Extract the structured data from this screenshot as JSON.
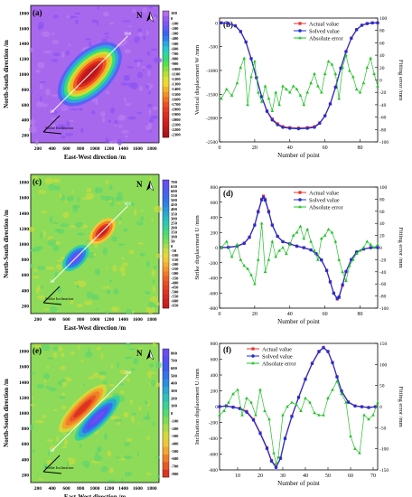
{
  "colors": {
    "actual": "#e8322a",
    "solved": "#1f2fd6",
    "error": "#22c22a",
    "map_field_green": "#8edb5a"
  },
  "map_scale": {
    "units": "mm",
    "a": {
      "ticks": [
        "100",
        "0",
        "-100",
        "-200",
        "-300",
        "-400",
        "-500",
        "-600",
        "-700",
        "-800",
        "-900",
        "-1000",
        "-1100",
        "-1200",
        "-1300",
        "-1400",
        "-1500",
        "-1600",
        "-1700",
        "-1800",
        "-1900",
        "-2000",
        "-2100",
        "-2200",
        "-2300"
      ],
      "colors": [
        "#b36cf0",
        "#9a5cf3",
        "#7f56f5",
        "#5e5cf5",
        "#3b63f2",
        "#2f80ec",
        "#2aa6e2",
        "#27c8cf",
        "#2ad8a6",
        "#35de77",
        "#56e04e",
        "#86e23b",
        "#b6e235",
        "#dde22f",
        "#f5d52a",
        "#f6b428",
        "#f59226",
        "#f27024",
        "#ee5022",
        "#e83a21",
        "#e02d20",
        "#d6231f",
        "#c91d1e",
        "#bb171c",
        "#ad121a"
      ]
    },
    "c": {
      "ticks": [
        "700",
        "650",
        "600",
        "550",
        "500",
        "450",
        "400",
        "350",
        "300",
        "250",
        "200",
        "150",
        "100",
        "50",
        "0",
        "-50",
        "-100",
        "-150",
        "-200",
        "-250",
        "-300",
        "-350",
        "-400",
        "-450",
        "-500",
        "-550",
        "-600",
        "-650"
      ],
      "colors": [
        "#6a4ef2",
        "#5a55f4",
        "#4a5ef4",
        "#3d68f1",
        "#3474ec",
        "#2d84e6",
        "#2a97dc",
        "#28aacf",
        "#28bcc0",
        "#2ccaab",
        "#36d392",
        "#48d97a",
        "#5fdc65",
        "#7edd55",
        "#a6dd48",
        "#c9dc3e",
        "#e2d838",
        "#f2c733",
        "#f5ae2e",
        "#f4952a",
        "#f27b27",
        "#ee6325",
        "#ea4f23",
        "#e54022",
        "#df3321",
        "#d82a20",
        "#cf221f",
        "#c51c1d"
      ]
    },
    "e": {
      "ticks": [
        "800",
        "700",
        "600",
        "500",
        "400",
        "300",
        "200",
        "100",
        "0",
        "-100",
        "-200",
        "-300",
        "-400",
        "-500",
        "-600",
        "-700",
        "-800"
      ],
      "colors": [
        "#6a4ef2",
        "#534ff4",
        "#3f5bf2",
        "#3471ec",
        "#2d8ce2",
        "#2aa8d2",
        "#2cc1b9",
        "#39d297",
        "#54da72",
        "#7edd55",
        "#aadc46",
        "#d2da3b",
        "#ecc835",
        "#f4a62d",
        "#f07f27",
        "#e95724",
        "#df3321"
      ]
    }
  },
  "panels": {
    "a": {
      "label": "(a)",
      "xlabel": "East-West direction /m",
      "ylabel": "North-South direction /m",
      "north": "N",
      "grid_label": "Strike Inclination",
      "line_start": "1#",
      "line_end": "90#"
    },
    "c": {
      "label": "(c)",
      "xlabel": "East-West direction /m",
      "ylabel": "North-South direction /m",
      "north": "N",
      "grid_label": "Strike Inclination",
      "line_start": "1#",
      "line_end": "90#"
    },
    "e": {
      "label": "(e)",
      "xlabel": "East-West direction /m",
      "ylabel": "North-South direction /m",
      "north": "N",
      "grid_label": "Strike Inclination",
      "line_start": "1#",
      "line_end": "70#"
    }
  },
  "chart_data": [
    {
      "id": "b",
      "type": "line",
      "label": "(b)",
      "xlabel": "Number of point",
      "ylabel": "Vertical displacement W /mm",
      "y2label": "Fitting error /mm",
      "xlim": [
        0,
        90
      ],
      "ylim": [
        -2500,
        100
      ],
      "y2lim": [
        -100,
        100
      ],
      "xticks": [
        0,
        20,
        40,
        60,
        80
      ],
      "yticks": [
        -2500,
        -2000,
        -1500,
        -1000,
        -500,
        0
      ],
      "y2ticks": [
        -100,
        -80,
        -60,
        -40,
        -20,
        0,
        20,
        40,
        60,
        80,
        100
      ],
      "legend": [
        "Actual value",
        "Solved value",
        "Absolute error"
      ],
      "legend_position": "top-right",
      "series": [
        {
          "name": "Actual value",
          "axis": "left",
          "x": [
            1,
            5,
            9,
            12,
            15,
            18,
            21,
            24,
            27,
            30,
            33,
            36,
            40,
            45,
            50,
            54,
            57,
            60,
            63,
            66,
            69,
            72,
            75,
            78,
            81,
            84,
            87,
            90
          ],
          "y": [
            0,
            -10,
            -60,
            -180,
            -400,
            -750,
            -1150,
            -1550,
            -1850,
            -2020,
            -2120,
            -2180,
            -2200,
            -2210,
            -2200,
            -2180,
            -2100,
            -1950,
            -1700,
            -1350,
            -950,
            -600,
            -320,
            -140,
            -50,
            -15,
            0,
            0
          ]
        },
        {
          "name": "Solved value",
          "axis": "left",
          "x": [
            1,
            5,
            9,
            12,
            15,
            18,
            21,
            24,
            27,
            30,
            33,
            36,
            40,
            45,
            50,
            54,
            57,
            60,
            63,
            66,
            69,
            72,
            75,
            78,
            81,
            84,
            87,
            90
          ],
          "y": [
            0,
            -12,
            -65,
            -185,
            -405,
            -755,
            -1155,
            -1555,
            -1860,
            -2040,
            -2140,
            -2195,
            -2215,
            -2225,
            -2215,
            -2195,
            -2110,
            -1955,
            -1705,
            -1355,
            -955,
            -605,
            -325,
            -145,
            -52,
            -16,
            -1,
            0
          ]
        },
        {
          "name": "Absolute error",
          "axis": "right",
          "x": [
            1,
            4,
            7,
            10,
            12,
            14,
            16,
            18,
            20,
            22,
            24,
            26,
            28,
            30,
            32,
            34,
            36,
            38,
            40,
            42,
            44,
            46,
            48,
            50,
            52,
            54,
            56,
            58,
            60,
            62,
            64,
            66,
            68,
            70,
            72,
            74,
            76,
            78,
            80,
            82,
            84,
            86,
            88,
            90
          ],
          "y": [
            -30,
            -15,
            -25,
            -5,
            20,
            35,
            -40,
            5,
            30,
            -20,
            -35,
            -10,
            -30,
            -50,
            -20,
            -40,
            -10,
            -15,
            -20,
            -10,
            -15,
            -25,
            -40,
            -20,
            -5,
            10,
            -10,
            -20,
            10,
            30,
            25,
            10,
            -30,
            20,
            40,
            15,
            5,
            -15,
            -20,
            -5,
            20,
            35,
            10,
            -10
          ]
        }
      ]
    },
    {
      "id": "d",
      "type": "line",
      "label": "(d)",
      "xlabel": "Number of point",
      "ylabel": "Strike displacement U /mm",
      "y2label": "Fitting error /mm",
      "xlim": [
        0,
        90
      ],
      "ylim": [
        -800,
        800
      ],
      "y2lim": [
        -100,
        100
      ],
      "xticks": [
        0,
        20,
        40,
        60,
        80
      ],
      "yticks": [
        -800,
        -600,
        -400,
        -200,
        0,
        200,
        400,
        600,
        800
      ],
      "y2ticks": [
        -100,
        -80,
        -60,
        -40,
        -20,
        0,
        20,
        40,
        60,
        80,
        100
      ],
      "legend": [
        "Actual value",
        "Solved value",
        "Absolute error"
      ],
      "legend_position": "top-right",
      "series": [
        {
          "name": "Actual value",
          "axis": "left",
          "x": [
            1,
            5,
            10,
            14,
            17,
            20,
            22,
            24,
            25,
            26,
            28,
            30,
            33,
            36,
            40,
            44,
            48,
            52,
            55,
            58,
            61,
            63,
            65,
            67,
            68,
            70,
            72,
            75,
            78,
            82,
            86,
            90
          ],
          "y": [
            0,
            5,
            20,
            60,
            140,
            300,
            480,
            640,
            680,
            640,
            480,
            300,
            150,
            80,
            50,
            20,
            0,
            -30,
            -80,
            -160,
            -300,
            -450,
            -600,
            -680,
            -660,
            -500,
            -320,
            -160,
            -60,
            -20,
            0,
            0
          ]
        },
        {
          "name": "Solved value",
          "axis": "left",
          "x": [
            1,
            5,
            10,
            14,
            17,
            20,
            22,
            24,
            25,
            26,
            28,
            30,
            33,
            36,
            40,
            44,
            48,
            52,
            55,
            58,
            61,
            63,
            65,
            67,
            68,
            70,
            72,
            75,
            78,
            82,
            86,
            90
          ],
          "y": [
            0,
            3,
            18,
            55,
            135,
            295,
            470,
            630,
            665,
            625,
            470,
            295,
            148,
            78,
            48,
            18,
            -2,
            -32,
            -82,
            -165,
            -305,
            -455,
            -605,
            -670,
            -650,
            -490,
            -315,
            -158,
            -58,
            -18,
            -2,
            0
          ]
        },
        {
          "name": "Absolute error",
          "axis": "right",
          "x": [
            1,
            4,
            7,
            10,
            12,
            14,
            16,
            18,
            20,
            22,
            24,
            26,
            28,
            30,
            32,
            34,
            36,
            38,
            40,
            42,
            44,
            46,
            48,
            50,
            52,
            54,
            56,
            58,
            60,
            62,
            64,
            66,
            68,
            70,
            72,
            74,
            76,
            78,
            80,
            82,
            84,
            86,
            88,
            90
          ],
          "y": [
            0,
            10,
            -15,
            5,
            -20,
            -30,
            -35,
            -45,
            -60,
            -20,
            40,
            -40,
            -20,
            10,
            -15,
            -5,
            0,
            -10,
            5,
            20,
            25,
            35,
            15,
            30,
            10,
            -5,
            -20,
            15,
            20,
            30,
            25,
            10,
            -20,
            -40,
            -55,
            -30,
            -20,
            -10,
            -5,
            0,
            10,
            5,
            0,
            5
          ]
        }
      ]
    },
    {
      "id": "f",
      "type": "line",
      "label": "(f)",
      "xlabel": "Number of point",
      "ylabel": "Inclination displacement U /mm",
      "y2label": "Fitting error /mm",
      "xlim": [
        2,
        72
      ],
      "ylim": [
        -800,
        800
      ],
      "y2lim": [
        -150,
        150
      ],
      "xticks": [
        10,
        20,
        30,
        40,
        50,
        60,
        70
      ],
      "yticks": [
        -800,
        -600,
        -400,
        -200,
        0,
        200,
        400,
        600,
        800
      ],
      "y2ticks": [
        -150,
        -100,
        -50,
        0,
        50,
        100,
        150
      ],
      "legend": [
        "Actual value",
        "Solved value",
        "Absolute error"
      ],
      "legend_position": "top-left",
      "series": [
        {
          "name": "Actual value",
          "axis": "left",
          "x": [
            2,
            5,
            8,
            11,
            14,
            17,
            20,
            23,
            25,
            27,
            29,
            31,
            34,
            37,
            40,
            43,
            46,
            48,
            50,
            52,
            54,
            56,
            59,
            62,
            65,
            68,
            71
          ],
          "y": [
            0,
            10,
            -5,
            -20,
            -60,
            -160,
            -330,
            -520,
            -680,
            -760,
            -650,
            -400,
            -120,
            120,
            350,
            550,
            700,
            750,
            700,
            560,
            380,
            200,
            60,
            10,
            0,
            -10,
            0
          ]
        },
        {
          "name": "Solved value",
          "axis": "left",
          "x": [
            2,
            5,
            8,
            11,
            14,
            17,
            20,
            23,
            25,
            27,
            29,
            31,
            34,
            37,
            40,
            43,
            46,
            48,
            50,
            52,
            54,
            56,
            59,
            62,
            65,
            68,
            71
          ],
          "y": [
            0,
            8,
            -8,
            -25,
            -70,
            -170,
            -340,
            -530,
            -690,
            -770,
            -655,
            -405,
            -125,
            115,
            345,
            545,
            695,
            745,
            695,
            555,
            375,
            195,
            55,
            8,
            -2,
            -12,
            -2
          ]
        },
        {
          "name": "Absolute error",
          "axis": "right",
          "x": [
            2,
            4,
            6,
            8,
            10,
            12,
            14,
            16,
            18,
            20,
            22,
            24,
            26,
            27,
            28,
            30,
            32,
            34,
            36,
            38,
            40,
            42,
            44,
            46,
            48,
            50,
            52,
            54,
            56,
            58,
            60,
            62,
            64,
            66,
            68,
            70,
            72
          ],
          "y": [
            -20,
            -10,
            10,
            30,
            40,
            -20,
            20,
            10,
            -20,
            40,
            -10,
            -30,
            -110,
            -135,
            -120,
            -20,
            0,
            10,
            5,
            -10,
            20,
            10,
            -15,
            -20,
            -20,
            20,
            40,
            60,
            30,
            10,
            -70,
            -100,
            -110,
            -20,
            -30,
            -20,
            10
          ]
        }
      ]
    }
  ]
}
